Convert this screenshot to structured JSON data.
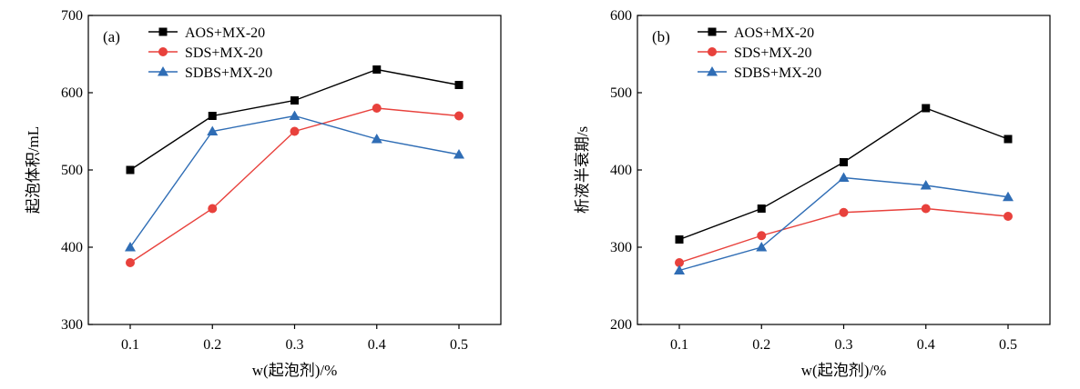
{
  "chart_data": [
    {
      "type": "line",
      "panel_label": "(a)",
      "xlabel": "w(起泡剂)/%",
      "ylabel": "起泡体积/mL",
      "x": [
        0.1,
        0.2,
        0.3,
        0.4,
        0.5
      ],
      "x_tick_labels": [
        "0.1",
        "0.2",
        "0.3",
        "0.4",
        "0.5"
      ],
      "ylim": [
        300,
        700
      ],
      "y_ticks": [
        300,
        400,
        500,
        600,
        700
      ],
      "legend_position": "top-left",
      "grid": false,
      "series": [
        {
          "name": "AOS+MX-20",
          "color": "#000000",
          "marker": "square",
          "values": [
            500,
            570,
            590,
            630,
            610
          ]
        },
        {
          "name": "SDS+MX-20",
          "color": "#e8413c",
          "marker": "circle",
          "values": [
            380,
            450,
            550,
            580,
            570
          ]
        },
        {
          "name": "SDBS+MX-20",
          "color": "#2f6db5",
          "marker": "triangle",
          "values": [
            400,
            550,
            570,
            540,
            520
          ]
        }
      ]
    },
    {
      "type": "line",
      "panel_label": "(b)",
      "xlabel": "w(起泡剂)/%",
      "ylabel": "析液半衰期/s",
      "x": [
        0.1,
        0.2,
        0.3,
        0.4,
        0.5
      ],
      "x_tick_labels": [
        "0.1",
        "0.2",
        "0.3",
        "0.4",
        "0.5"
      ],
      "ylim": [
        200,
        600
      ],
      "y_ticks": [
        200,
        300,
        400,
        500,
        600
      ],
      "legend_position": "top-left",
      "grid": false,
      "series": [
        {
          "name": "AOS+MX-20",
          "color": "#000000",
          "marker": "square",
          "values": [
            310,
            350,
            410,
            480,
            440
          ]
        },
        {
          "name": "SDS+MX-20",
          "color": "#e8413c",
          "marker": "circle",
          "values": [
            280,
            315,
            345,
            350,
            340
          ]
        },
        {
          "name": "SDBS+MX-20",
          "color": "#2f6db5",
          "marker": "triangle",
          "values": [
            270,
            300,
            390,
            380,
            365
          ]
        }
      ]
    }
  ]
}
